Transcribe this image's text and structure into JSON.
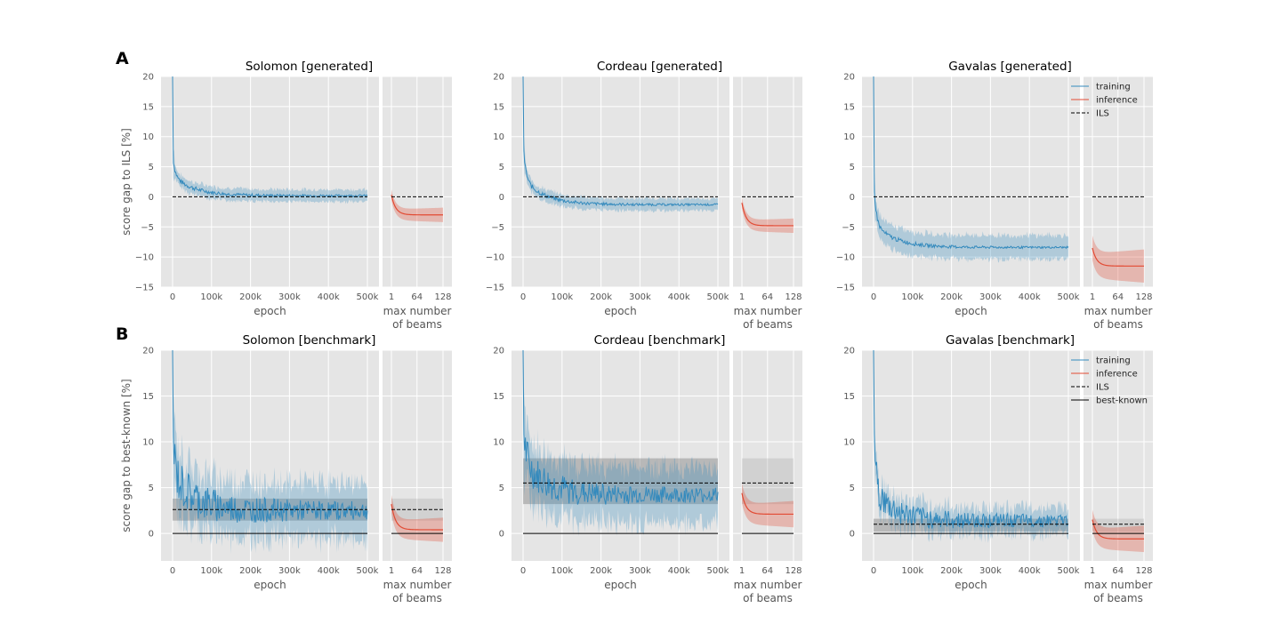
{
  "figure": {
    "panel_labels": [
      "A",
      "B"
    ],
    "colors": {
      "training": "#348abd",
      "inference": "#e24a33",
      "background": "#e5e5e5",
      "grid": "#ffffff",
      "band_gray": "#808080"
    }
  },
  "chart_data": [
    {
      "type": "line",
      "panel": "A",
      "title": "Solomon [generated]",
      "ylabel": "score gap to ILS [%]",
      "ylim": [
        -15,
        20
      ],
      "yticks": [
        -15,
        -10,
        -5,
        0,
        5,
        10,
        15,
        20
      ],
      "training": {
        "xlabel": "epoch",
        "xlim": [
          0,
          500000
        ],
        "xticks": [
          0,
          100000,
          200000,
          300000,
          400000,
          500000
        ],
        "xticklabels": [
          "0",
          "100k",
          "200k",
          "300k",
          "400k",
          "500k"
        ],
        "series": [
          {
            "name": "training",
            "start": 20,
            "knee": 7,
            "mid": 3.5,
            "end": 0.2,
            "band": 1.0,
            "noise": 0.3
          }
        ]
      },
      "inference": {
        "xlabel": "max number of beams",
        "xticks": [
          1,
          64,
          128
        ],
        "xticklabels": [
          "1",
          "64",
          "128"
        ],
        "series": [
          {
            "name": "inference",
            "start": 0.3,
            "end": -3.0,
            "band": 1.0
          }
        ]
      },
      "ils": 0,
      "legend": null
    },
    {
      "type": "line",
      "panel": "A",
      "title": "Cordeau [generated]",
      "ylabel": "",
      "ylim": [
        -15,
        20
      ],
      "yticks": [
        -15,
        -10,
        -5,
        0,
        5,
        10,
        15,
        20
      ],
      "training": {
        "xlabel": "epoch",
        "xlim": [
          0,
          500000
        ],
        "xticks": [
          0,
          100000,
          200000,
          300000,
          400000,
          500000
        ],
        "xticklabels": [
          "0",
          "100k",
          "200k",
          "300k",
          "400k",
          "500k"
        ],
        "series": [
          {
            "name": "training",
            "start": 20,
            "knee": 9,
            "mid": 3.0,
            "end": -1.3,
            "band": 1.0,
            "noise": 0.3
          }
        ]
      },
      "inference": {
        "xlabel": "max number of beams",
        "xticks": [
          1,
          64,
          128
        ],
        "xticklabels": [
          "1",
          "64",
          "128"
        ],
        "series": [
          {
            "name": "inference",
            "start": -1.0,
            "end": -4.8,
            "band": 1.0
          }
        ]
      },
      "ils": 0,
      "legend": null
    },
    {
      "type": "line",
      "panel": "A",
      "title": "Gavalas [generated]",
      "ylabel": "",
      "ylim": [
        -15,
        20
      ],
      "yticks": [
        -15,
        -10,
        -5,
        0,
        5,
        10,
        15,
        20
      ],
      "training": {
        "xlabel": "epoch",
        "xlim": [
          0,
          500000
        ],
        "xticks": [
          0,
          100000,
          200000,
          300000,
          400000,
          500000
        ],
        "xticklabels": [
          "0",
          "100k",
          "200k",
          "300k",
          "400k",
          "500k"
        ],
        "series": [
          {
            "name": "training",
            "start": 20,
            "knee": 3,
            "mid": -4.5,
            "end": -8.4,
            "band": 2.0,
            "noise": 0.3
          }
        ]
      },
      "inference": {
        "xlabel": "max number of beams",
        "xticks": [
          1,
          64,
          128
        ],
        "xticklabels": [
          "1",
          "64",
          "128"
        ],
        "series": [
          {
            "name": "inference",
            "start": -8.5,
            "end": -11.5,
            "band": 2.3
          }
        ]
      },
      "ils": 0,
      "legend": {
        "position": "top-right",
        "entries": [
          "training",
          "inference",
          "ILS"
        ]
      }
    },
    {
      "type": "line",
      "panel": "B",
      "title": "Solomon [benchmark]",
      "ylabel": "score gap to best-known [%]",
      "ylim": [
        -3,
        20
      ],
      "yticks": [
        0,
        5,
        10,
        15,
        20
      ],
      "training": {
        "xlabel": "epoch",
        "xlim": [
          0,
          500000
        ],
        "xticks": [
          0,
          100000,
          200000,
          300000,
          400000,
          500000
        ],
        "xticklabels": [
          "0",
          "100k",
          "200k",
          "300k",
          "400k",
          "500k"
        ],
        "series": [
          {
            "name": "training",
            "start": 20,
            "knee": 11,
            "mid": 6.5,
            "end": 2.5,
            "band": 3.0,
            "noise": 1.8
          }
        ]
      },
      "inference": {
        "xlabel": "max number of beams",
        "xticks": [
          1,
          64,
          128
        ],
        "xticklabels": [
          "1",
          "64",
          "128"
        ],
        "series": [
          {
            "name": "inference",
            "start": 3.2,
            "end": 0.4,
            "band": 1.1
          }
        ]
      },
      "ils": 2.6,
      "ils_band": [
        1.4,
        3.8
      ],
      "best_known": 0,
      "legend": null
    },
    {
      "type": "line",
      "panel": "B",
      "title": "Cordeau [benchmark]",
      "ylabel": "",
      "ylim": [
        -3,
        20
      ],
      "yticks": [
        0,
        5,
        10,
        15,
        20
      ],
      "training": {
        "xlabel": "epoch",
        "xlim": [
          0,
          500000
        ],
        "xticks": [
          0,
          100000,
          200000,
          300000,
          400000,
          500000
        ],
        "xticklabels": [
          "0",
          "100k",
          "200k",
          "300k",
          "400k",
          "500k"
        ],
        "series": [
          {
            "name": "training",
            "start": 20,
            "knee": 12,
            "mid": 8.0,
            "end": 4.2,
            "band": 3.0,
            "noise": 1.5
          }
        ]
      },
      "inference": {
        "xlabel": "max number of beams",
        "xticks": [
          1,
          64,
          128
        ],
        "xticklabels": [
          "1",
          "64",
          "128"
        ],
        "series": [
          {
            "name": "inference",
            "start": 4.4,
            "end": 2.1,
            "band": 1.2
          }
        ]
      },
      "ils": 5.5,
      "ils_band": [
        3.2,
        8.2
      ],
      "best_known": 0,
      "legend": null
    },
    {
      "type": "line",
      "panel": "B",
      "title": "Gavalas [benchmark]",
      "ylabel": "",
      "ylim": [
        -3,
        20
      ],
      "yticks": [
        0,
        5,
        10,
        15,
        20
      ],
      "training": {
        "xlabel": "epoch",
        "xlim": [
          0,
          500000
        ],
        "xticks": [
          0,
          100000,
          200000,
          300000,
          400000,
          500000
        ],
        "xticklabels": [
          "0",
          "100k",
          "200k",
          "300k",
          "400k",
          "500k"
        ],
        "series": [
          {
            "name": "training",
            "start": 20,
            "knee": 12,
            "mid": 4.5,
            "end": 1.4,
            "band": 1.4,
            "noise": 1.2
          }
        ]
      },
      "inference": {
        "xlabel": "max number of beams",
        "xticks": [
          1,
          64,
          128
        ],
        "xticklabels": [
          "1",
          "64",
          "128"
        ],
        "series": [
          {
            "name": "inference",
            "start": 1.5,
            "end": -0.6,
            "band": 1.2
          }
        ]
      },
      "ils": 1.0,
      "ils_band": [
        0.2,
        1.6
      ],
      "best_known": 0,
      "legend": {
        "position": "top-right",
        "entries": [
          "training",
          "inference",
          "ILS",
          "best-known"
        ]
      }
    }
  ]
}
